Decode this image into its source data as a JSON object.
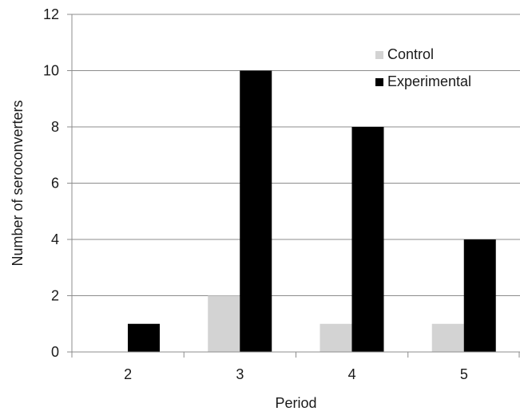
{
  "chart_data": {
    "type": "bar",
    "title": "",
    "xlabel": "Period",
    "ylabel": "Number of seroconverters",
    "categories": [
      "2",
      "3",
      "4",
      "5"
    ],
    "series": [
      {
        "name": "Control",
        "values": [
          0,
          2,
          1,
          1
        ],
        "color": "#d3d3d3"
      },
      {
        "name": "Experimental",
        "values": [
          1,
          10,
          8,
          4
        ],
        "color": "#000000"
      }
    ],
    "ylim": [
      0,
      12
    ],
    "yticks": [
      "0",
      "2",
      "4",
      "6",
      "8",
      "10",
      "12"
    ],
    "grid": true,
    "legend_position": "top-right"
  }
}
